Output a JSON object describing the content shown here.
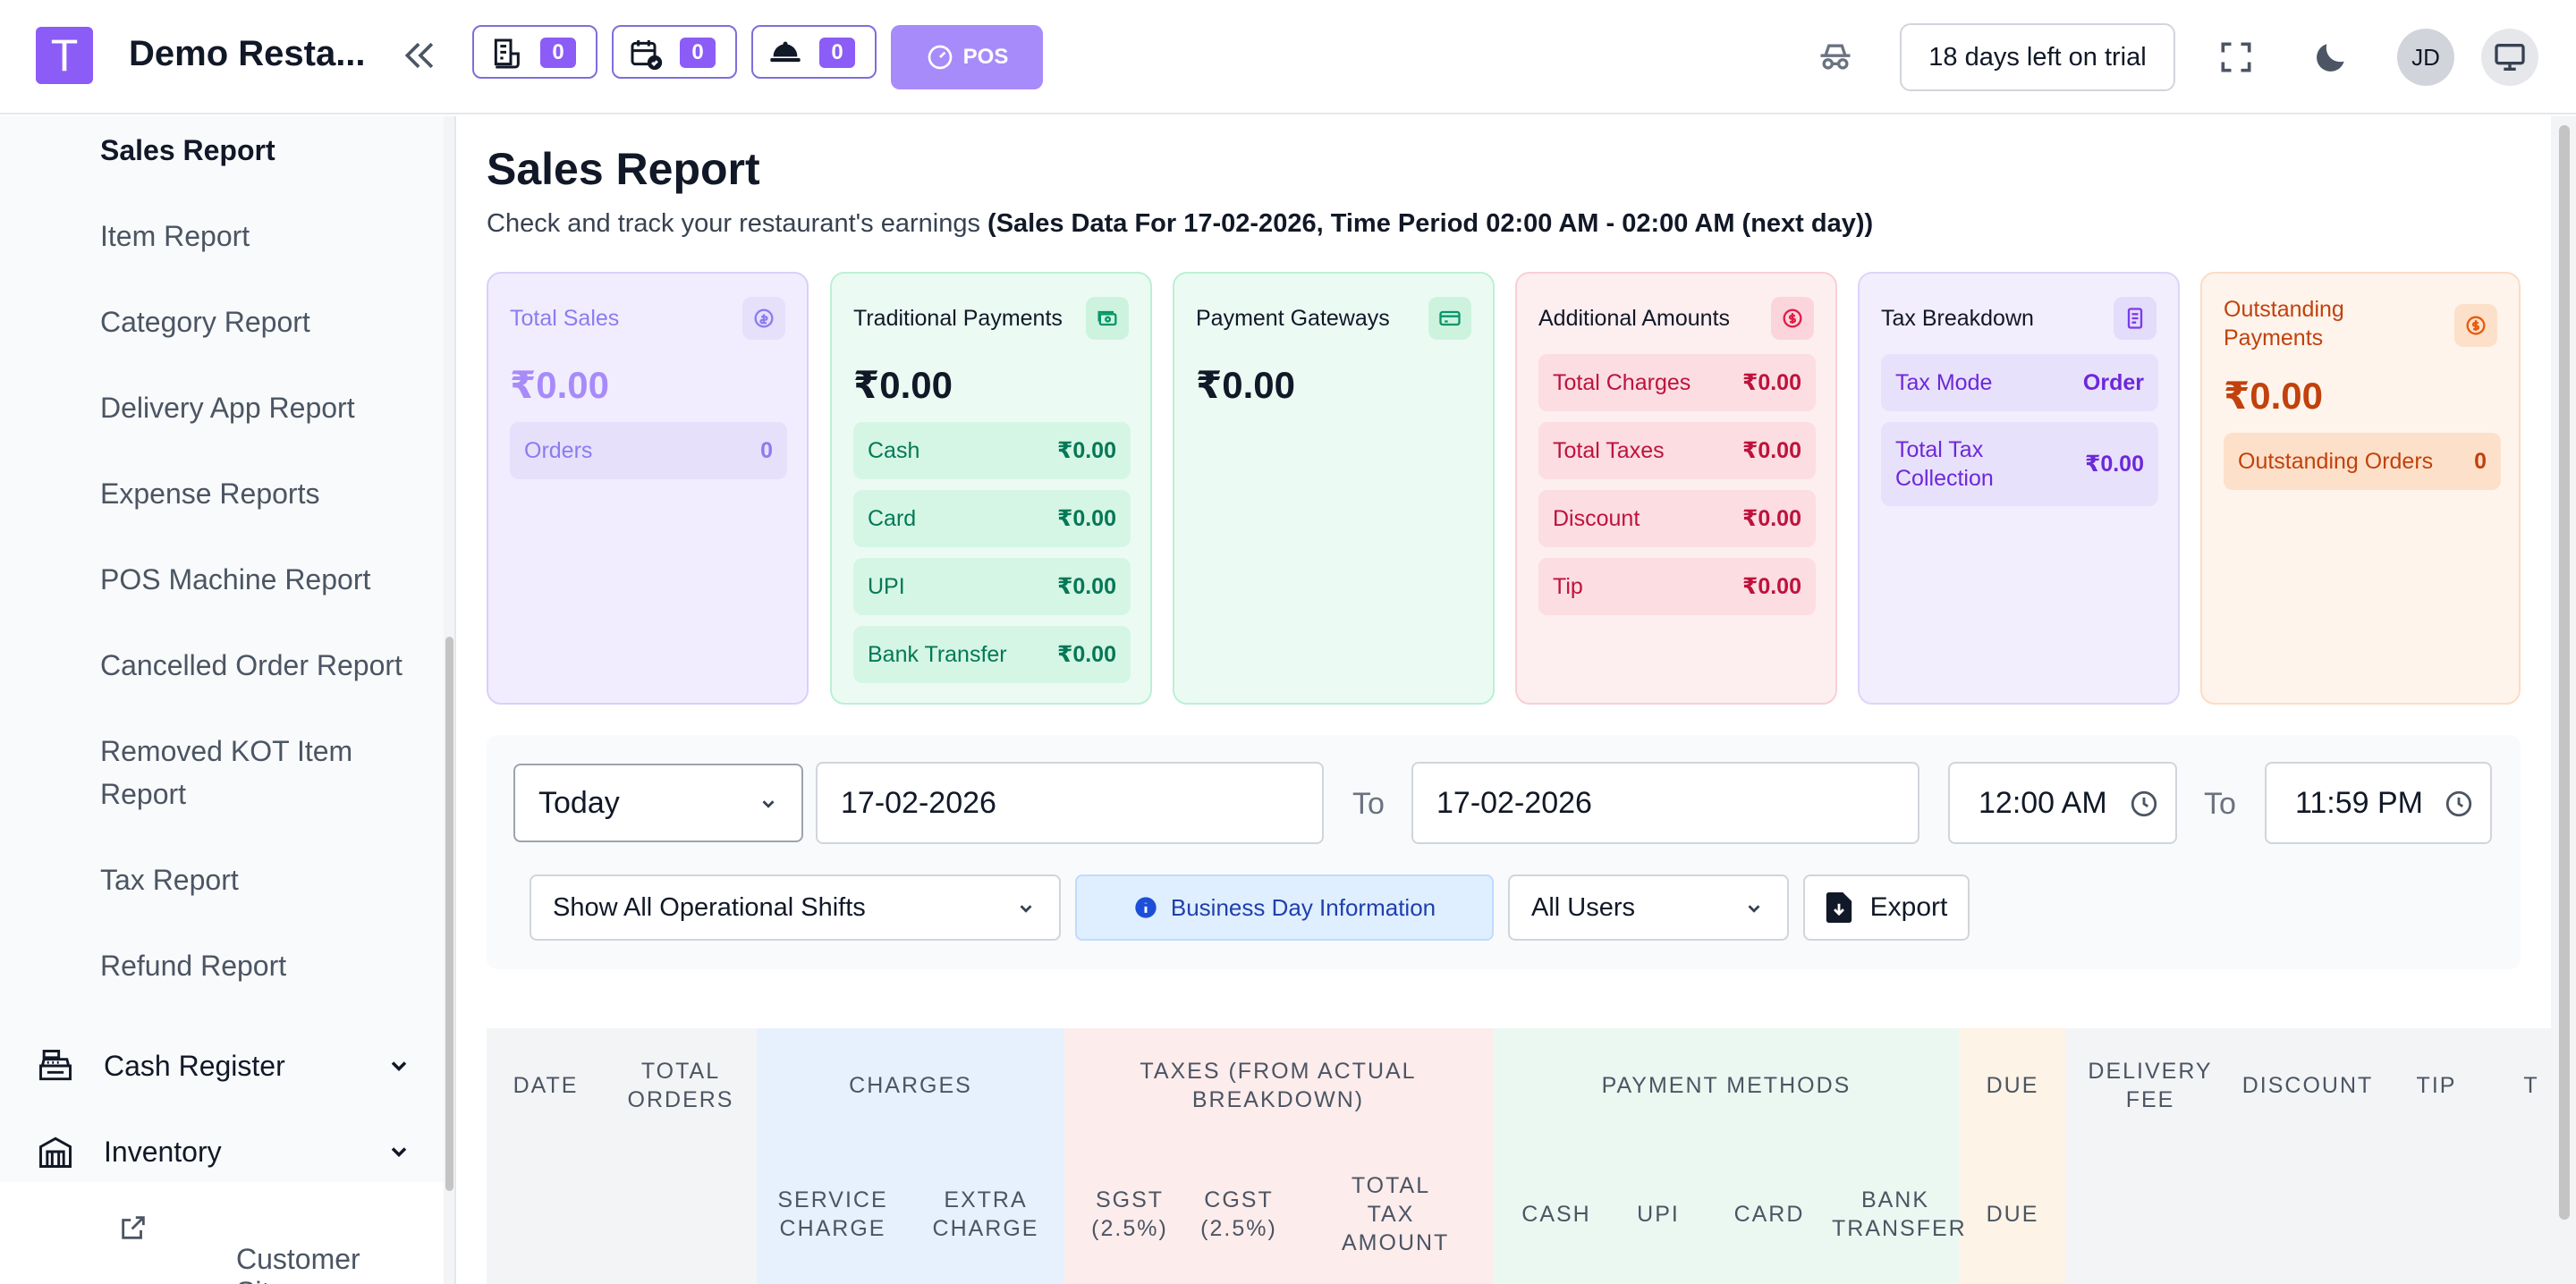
{
  "header": {
    "logo_letter": "T",
    "brand": "Demo Resta...",
    "badges": [
      {
        "icon": "receipt-icon",
        "count": "0"
      },
      {
        "icon": "calendar-check-icon",
        "count": "0"
      },
      {
        "icon": "food-cloche-icon",
        "count": "0"
      }
    ],
    "pos_label": "POS",
    "trial_text": "18 days left on trial",
    "avatar_initials": "JD"
  },
  "sidebar": {
    "items": [
      {
        "label": "Sales Report",
        "active": true
      },
      {
        "label": "Item Report"
      },
      {
        "label": "Category Report"
      },
      {
        "label": "Delivery App Report"
      },
      {
        "label": "Expense Reports"
      },
      {
        "label": "POS Machine Report"
      },
      {
        "label": "Cancelled Order Report"
      },
      {
        "label": "Removed KOT Item Report"
      },
      {
        "label": "Tax Report"
      },
      {
        "label": "Refund Report"
      }
    ],
    "groups": [
      {
        "label": "Cash Register",
        "icon": "cash-register-icon"
      },
      {
        "label": "Inventory",
        "icon": "inventory-icon"
      }
    ],
    "customer_site": "Customer Site"
  },
  "page": {
    "title": "Sales Report",
    "subtitle": "Check and track your restaurant's earnings",
    "subtitle_bold": "(Sales Data For 17-02-2026, Time Period 02:00 AM - 02:00 AM (next day))"
  },
  "cards": {
    "total_sales": {
      "title": "Total Sales",
      "amount": "₹0.00",
      "rows": [
        {
          "label": "Orders",
          "value": "0"
        }
      ]
    },
    "traditional": {
      "title": "Traditional Payments",
      "amount": "₹0.00",
      "rows": [
        {
          "label": "Cash",
          "value": "₹0.00"
        },
        {
          "label": "Card",
          "value": "₹0.00"
        },
        {
          "label": "UPI",
          "value": "₹0.00"
        },
        {
          "label": "Bank Transfer",
          "value": "₹0.00"
        }
      ]
    },
    "gateways": {
      "title": "Payment Gateways",
      "amount": "₹0.00"
    },
    "additional": {
      "title": "Additional Amounts",
      "rows": [
        {
          "label": "Total Charges",
          "value": "₹0.00"
        },
        {
          "label": "Total Taxes",
          "value": "₹0.00"
        },
        {
          "label": "Discount",
          "value": "₹0.00"
        },
        {
          "label": "Tip",
          "value": "₹0.00"
        }
      ]
    },
    "tax": {
      "title": "Tax Breakdown",
      "rows": [
        {
          "label": "Tax Mode",
          "value": "Order"
        },
        {
          "label": "Total Tax Collection",
          "value": "₹0.00"
        }
      ]
    },
    "outstanding": {
      "title": "Outstanding Payments",
      "amount": "₹0.00",
      "rows": [
        {
          "label": "Outstanding Orders",
          "value": "0"
        }
      ]
    }
  },
  "filters": {
    "period": "Today",
    "date_from": "17-02-2026",
    "to_label": "To",
    "date_to": "17-02-2026",
    "time_from": "12:00 AM",
    "time_to": "11:59 PM",
    "shifts": "Show All Operational Shifts",
    "business_day_info": "Business Day Information",
    "users": "All Users",
    "export": "Export"
  },
  "table": {
    "top_headers": [
      "DATE",
      "TOTAL ORDERS",
      "CHARGES",
      "TAXES (FROM ACTUAL BREAKDOWN)",
      "PAYMENT METHODS",
      "DUE",
      "DELIVERY FEE",
      "DISCOUNT",
      "TIP",
      "T"
    ],
    "sub_headers": [
      "SERVICE CHARGE",
      "EXTRA CHARGE",
      "SGST (2.5%)",
      "CGST (2.5%)",
      "TOTAL TAX AMOUNT",
      "CASH",
      "UPI",
      "CARD",
      "BANK TRANSFER",
      "DUE"
    ],
    "colors": {
      "charges": "#e7f1fd",
      "taxes": "#fdecec",
      "payments": "#ebf8f1",
      "due": "#fdf3e6"
    }
  }
}
